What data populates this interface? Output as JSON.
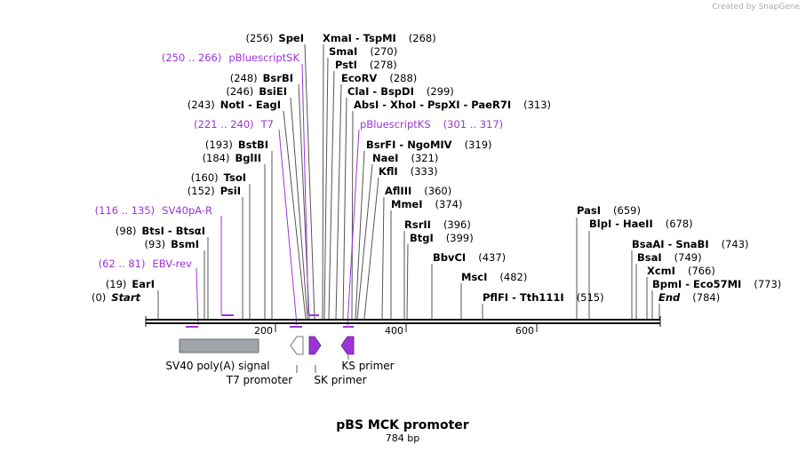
{
  "credit": "Created by SnapGene",
  "map_title": "pBS MCK promoter",
  "map_length": "784 bp",
  "scale_ticks": [
    "200",
    "400",
    "600"
  ],
  "sites": [
    {
      "pos": "(0)",
      "name": "Start",
      "kind": "end"
    },
    {
      "pos": "(19)",
      "name": "EarI"
    },
    {
      "pos": "(93)",
      "name": "BsmI"
    },
    {
      "pos": "(98)",
      "name": "BtsI - BtsαI"
    },
    {
      "pos": "(152)",
      "name": "PsiI"
    },
    {
      "pos": "(160)",
      "name": "TsoI"
    },
    {
      "pos": "(184)",
      "name": "BglII"
    },
    {
      "pos": "(193)",
      "name": "BstBI"
    },
    {
      "pos": "(243)",
      "name": "NotI - EagI"
    },
    {
      "pos": "(246)",
      "name": "BsiEI"
    },
    {
      "pos": "(248)",
      "name": "BsrBI"
    },
    {
      "pos": "(256)",
      "name": "SpeI"
    },
    {
      "name": "XmaI - TspMI",
      "pos": "(268)"
    },
    {
      "name": "SmaI",
      "pos": "(270)"
    },
    {
      "name": "PstI",
      "pos": "(278)"
    },
    {
      "name": "EcoRV",
      "pos": "(288)"
    },
    {
      "name": "ClaI - BspDI",
      "pos": "(299)"
    },
    {
      "name": "AbsI - XhoI - PspXI - PaeR7I",
      "pos": "(313)"
    },
    {
      "name": "BsrFI - NgoMIV",
      "pos": "(319)"
    },
    {
      "name": "NaeI",
      "pos": "(321)"
    },
    {
      "name": "KflI",
      "pos": "(333)"
    },
    {
      "name": "AflIII",
      "pos": "(360)"
    },
    {
      "name": "MmeI",
      "pos": "(374)"
    },
    {
      "name": "RsrII",
      "pos": "(396)"
    },
    {
      "name": "BtgI",
      "pos": "(399)"
    },
    {
      "name": "BbvCI",
      "pos": "(437)"
    },
    {
      "name": "MscI",
      "pos": "(482)"
    },
    {
      "name": "PflFI - Tth111I",
      "pos": "(515)"
    },
    {
      "name": "PasI",
      "pos": "(659)"
    },
    {
      "name": "BlpI - HaeII",
      "pos": "(678)"
    },
    {
      "name": "BsaAI - SnaBI",
      "pos": "(743)"
    },
    {
      "name": "BsaI",
      "pos": "(749)"
    },
    {
      "name": "XcmI",
      "pos": "(766)"
    },
    {
      "name": "BpmI - Eco57MI",
      "pos": "(773)"
    },
    {
      "name": "End",
      "pos": "(784)",
      "kind": "end"
    }
  ],
  "primer_sites": [
    {
      "range": "(62 .. 81)",
      "name": "EBV-rev"
    },
    {
      "range": "(116 .. 135)",
      "name": "SV40pA-R"
    },
    {
      "range": "(221 .. 240)",
      "name": "T7"
    },
    {
      "range": "(250 .. 266)",
      "name": "pBluescriptSK"
    },
    {
      "name": "pBluescriptKS",
      "range": "(301 .. 317)"
    }
  ],
  "features": [
    "SV40 poly(A) signal",
    "T7 promoter",
    "SK primer",
    "KS primer"
  ],
  "colors": {
    "primer": "#9c34d9",
    "feature_box": "#a0a4ab",
    "backbone": "#111111"
  }
}
